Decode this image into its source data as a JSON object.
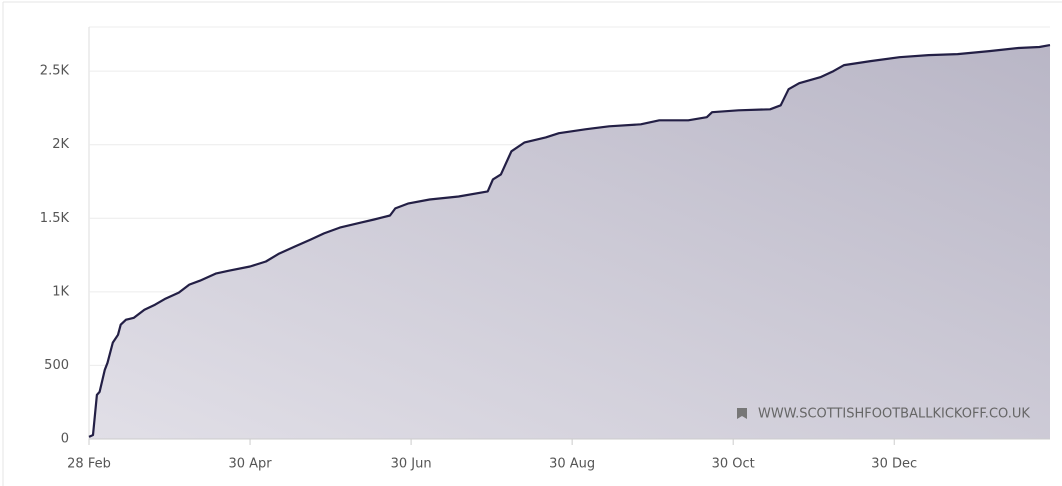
{
  "chart_data": {
    "type": "area",
    "x": [
      0,
      1.5,
      3,
      4,
      6,
      7,
      9,
      11,
      12,
      14,
      17,
      21,
      25,
      29,
      34,
      38,
      42,
      48,
      53,
      61,
      67,
      72,
      78,
      84,
      89,
      95,
      103,
      108,
      114,
      116,
      121,
      129,
      140,
      151,
      153,
      156,
      160,
      165,
      173,
      178,
      188,
      197,
      209,
      216,
      227,
      234,
      236,
      246,
      258,
      262,
      265,
      269,
      277,
      282,
      286,
      296,
      307,
      318,
      329,
      341,
      352,
      360,
      364
    ],
    "values": [
      14,
      27,
      300,
      320,
      470,
      518,
      655,
      708,
      777,
      811,
      824,
      879,
      913,
      954,
      995,
      1049,
      1076,
      1124,
      1144,
      1172,
      1206,
      1260,
      1308,
      1356,
      1397,
      1437,
      1471,
      1492,
      1519,
      1567,
      1601,
      1628,
      1648,
      1683,
      1764,
      1798,
      1955,
      2016,
      2050,
      2078,
      2105,
      2125,
      2139,
      2166,
      2166,
      2187,
      2221,
      2234,
      2241,
      2268,
      2377,
      2418,
      2459,
      2500,
      2541,
      2568,
      2595,
      2609,
      2616,
      2636,
      2657,
      2664,
      2677
    ],
    "color": "#231f45",
    "xlim": [
      0,
      364
    ],
    "xticks": [
      {
        "value": 0,
        "label": "28 Feb"
      },
      {
        "value": 61,
        "label": "30 Apr"
      },
      {
        "value": 122,
        "label": "30 Jun"
      },
      {
        "value": 183,
        "label": "30 Aug"
      },
      {
        "value": 244,
        "label": "30 Oct"
      },
      {
        "value": 305,
        "label": "30 Dec"
      }
    ],
    "ylim": [
      0,
      2800
    ],
    "yticks": [
      0,
      500,
      {
        "value": 1000,
        "label": "1K"
      },
      {
        "value": 1500,
        "label": "1.5K"
      },
      {
        "value": 2000,
        "label": "2K"
      },
      {
        "value": 2500,
        "label": "2.5K"
      }
    ],
    "grid": true,
    "watermark": "WWW.SCOTTISHFOOTBALLKICKOFF.CO.UK"
  }
}
